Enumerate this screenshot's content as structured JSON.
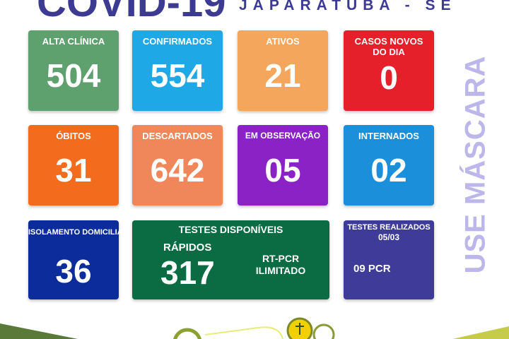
{
  "header": {
    "title": "COVID-19",
    "city": "JAPARATUBA - SE"
  },
  "cards": [
    {
      "label": "ALTA CLÍNICA",
      "value": "504",
      "color": "#5fa06f"
    },
    {
      "label": "CONFIRMADOS",
      "value": "554",
      "color": "#1ea9e6"
    },
    {
      "label": "ATIVOS",
      "value": "21",
      "color": "#f4a75c"
    },
    {
      "label": "CASOS NOVOS DO DIA",
      "value": "0",
      "color": "#e5202a"
    },
    {
      "label": "ÓBITOS",
      "value": "31",
      "color": "#f36b1c"
    },
    {
      "label": "DESCARTADOS",
      "value": "642",
      "color": "#f0875a"
    },
    {
      "label": "EM OBSERVAÇÃO",
      "value": "05",
      "color": "#8b22c6"
    },
    {
      "label": "INTERNADOS",
      "value": "02",
      "color": "#1b8fd9"
    },
    {
      "label": "ISOLAMENTO DOMICILIAR",
      "value": "36",
      "color": "#0c2c9c"
    }
  ],
  "tests": {
    "label": "TESTES DISPONÍVEIS",
    "rapid_label": "RÁPIDOS",
    "rapid_value": "317",
    "rtpcr_label": "RT-PCR",
    "rtpcr_value": "ILIMITADO",
    "color": "#0b6b42"
  },
  "done": {
    "label": "TESTES REALIZADOS",
    "date": "05/03",
    "value": "09 PCR",
    "color": "#3f3b99"
  },
  "side_text": "USE MÁSCARA"
}
